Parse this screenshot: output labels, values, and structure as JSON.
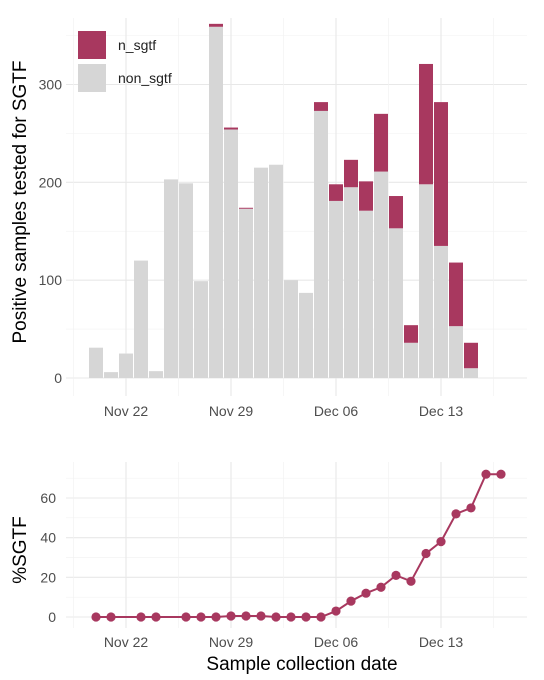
{
  "colors": {
    "n_sgtf": "#a8385f",
    "non_sgtf": "#d6d6d6",
    "line": "#a8385f"
  },
  "chart_data": [
    {
      "type": "bar",
      "stacked": true,
      "xlabel": "",
      "ylabel": "Positive samples tested for SGTF",
      "ylim": [
        0,
        360
      ],
      "yticks": [
        0,
        100,
        200,
        300
      ],
      "xticks": [
        {
          "date": "2020-11-22",
          "label": "Nov 22"
        },
        {
          "date": "2020-11-29",
          "label": "Nov 29"
        },
        {
          "date": "2020-12-06",
          "label": "Dec 06"
        },
        {
          "date": "2020-12-13",
          "label": "Dec 13"
        }
      ],
      "xlim": [
        "2020-11-19",
        "2020-12-19"
      ],
      "grid": true,
      "legend": {
        "position": "top-left",
        "entries": [
          "n_sgtf",
          "non_sgtf"
        ]
      },
      "categories": [
        "2020-11-20",
        "2020-11-21",
        "2020-11-22",
        "2020-11-23",
        "2020-11-24",
        "2020-11-25",
        "2020-11-26",
        "2020-11-27",
        "2020-11-28",
        "2020-11-29",
        "2020-11-30",
        "2020-12-01",
        "2020-12-02",
        "2020-12-03",
        "2020-12-04",
        "2020-12-05",
        "2020-12-06",
        "2020-12-07",
        "2020-12-08",
        "2020-12-09",
        "2020-12-10",
        "2020-12-11",
        "2020-12-12",
        "2020-12-13",
        "2020-12-14",
        "2020-12-15",
        "2020-12-16"
      ],
      "series": [
        {
          "name": "non_sgtf",
          "values": [
            31,
            6,
            25,
            120,
            7,
            203,
            199,
            99,
            359,
            254,
            173,
            215,
            218,
            100,
            87,
            273,
            181,
            195,
            171,
            211,
            153,
            36,
            198,
            135,
            53,
            10,
            0
          ]
        },
        {
          "name": "n_sgtf",
          "values": [
            0,
            0,
            0,
            0,
            0,
            0,
            0,
            0,
            3,
            2,
            1,
            0,
            0,
            0,
            0,
            9,
            17,
            28,
            30,
            59,
            33,
            18,
            123,
            147,
            65,
            26,
            0
          ]
        }
      ]
    },
    {
      "type": "line",
      "xlabel": "Sample collection date",
      "ylabel": "%SGTF",
      "ylim": [
        0,
        75
      ],
      "yticks": [
        0,
        20,
        40,
        60
      ],
      "xticks": [
        {
          "date": "2020-11-22",
          "label": "Nov 22"
        },
        {
          "date": "2020-11-29",
          "label": "Nov 29"
        },
        {
          "date": "2020-12-06",
          "label": "Dec 06"
        },
        {
          "date": "2020-12-13",
          "label": "Dec 13"
        }
      ],
      "xlim": [
        "2020-11-19",
        "2020-12-19"
      ],
      "grid": true,
      "x": [
        "2020-11-20",
        "2020-11-21",
        "2020-11-23",
        "2020-11-24",
        "2020-11-26",
        "2020-11-27",
        "2020-11-28",
        "2020-11-29",
        "2020-11-30",
        "2020-12-01",
        "2020-12-02",
        "2020-12-03",
        "2020-12-04",
        "2020-12-05",
        "2020-12-06",
        "2020-12-07",
        "2020-12-08",
        "2020-12-09",
        "2020-12-10",
        "2020-12-11",
        "2020-12-12",
        "2020-12-13",
        "2020-12-14",
        "2020-12-15",
        "2020-12-16",
        "2020-12-17"
      ],
      "y": [
        0,
        0,
        0,
        0,
        0,
        0,
        0,
        0.5,
        0.5,
        0.5,
        0,
        0,
        0,
        0,
        3,
        8,
        12,
        15,
        21,
        18,
        32,
        38,
        52,
        55,
        72,
        72
      ],
      "note_values": "percent SGTF per day"
    }
  ]
}
